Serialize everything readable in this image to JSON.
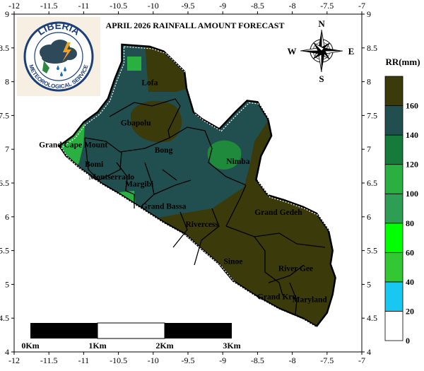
{
  "title": "APRIL 2026 RAINFALL AMOUNT FORECAST",
  "logo": {
    "name": "LIBERIA",
    "subtitle": "METEOROLOGICAL SERVICE"
  },
  "compass": {
    "n": "N",
    "s": "S",
    "e": "E",
    "w": "W"
  },
  "axes": {
    "x_ticks": [
      "-12",
      "-11.5",
      "-11",
      "-10.5",
      "-10",
      "-9.5",
      "-9",
      "-8.5",
      "-8",
      "-7.5",
      "-7"
    ],
    "y_ticks": [
      "9",
      "8.5",
      "8",
      "7.5",
      "7",
      "6.5",
      "6",
      "5.5",
      "5",
      "4.5",
      "4"
    ],
    "x_range": [
      -12,
      -7
    ],
    "y_range": [
      4,
      9
    ]
  },
  "counties": [
    {
      "name": "Lofa",
      "lon": -10.05,
      "lat": 7.95
    },
    {
      "name": "Gbapolu",
      "lon": -10.25,
      "lat": 7.35
    },
    {
      "name": "Grand Cape Mount",
      "lon": -11.15,
      "lat": 7.03
    },
    {
      "name": "Bong",
      "lon": -9.85,
      "lat": 6.95
    },
    {
      "name": "Nimba",
      "lon": -8.78,
      "lat": 6.78
    },
    {
      "name": "Bomi",
      "lon": -10.85,
      "lat": 6.74
    },
    {
      "name": "Montserrado",
      "lon": -10.6,
      "lat": 6.55
    },
    {
      "name": "Margibi",
      "lon": -10.2,
      "lat": 6.45
    },
    {
      "name": "Grand Bassa",
      "lon": -9.85,
      "lat": 6.12
    },
    {
      "name": "Grand Gedeh",
      "lon": -8.2,
      "lat": 6.03
    },
    {
      "name": "Rivercess",
      "lon": -9.3,
      "lat": 5.85
    },
    {
      "name": "Sinoe",
      "lon": -8.85,
      "lat": 5.3
    },
    {
      "name": "River Gee",
      "lon": -7.95,
      "lat": 5.2
    },
    {
      "name": "Grand Kru",
      "lon": -8.22,
      "lat": 4.78
    },
    {
      "name": "Maryland",
      "lon": -7.75,
      "lat": 4.74
    }
  ],
  "scale_bar": {
    "labels": [
      "0Km",
      "1Km",
      "2Km",
      "3Km"
    ]
  },
  "legend": {
    "title": "RR(mm)",
    "labels": [
      "0",
      "20",
      "40",
      "60",
      "80",
      "100",
      "120",
      "140",
      "160"
    ],
    "colors": [
      "#ffffff",
      "#19c8f0",
      "#33c833",
      "#00ff00",
      "#2e9e55",
      "#2ab040",
      "#157a3a",
      "#214f4f",
      "#3b3a0a"
    ]
  },
  "map_colors": {
    "dark_olive": "#3b3a0a",
    "dark_teal": "#214f4f",
    "green": "#2ab040",
    "mid_green": "#1f8a3c"
  }
}
